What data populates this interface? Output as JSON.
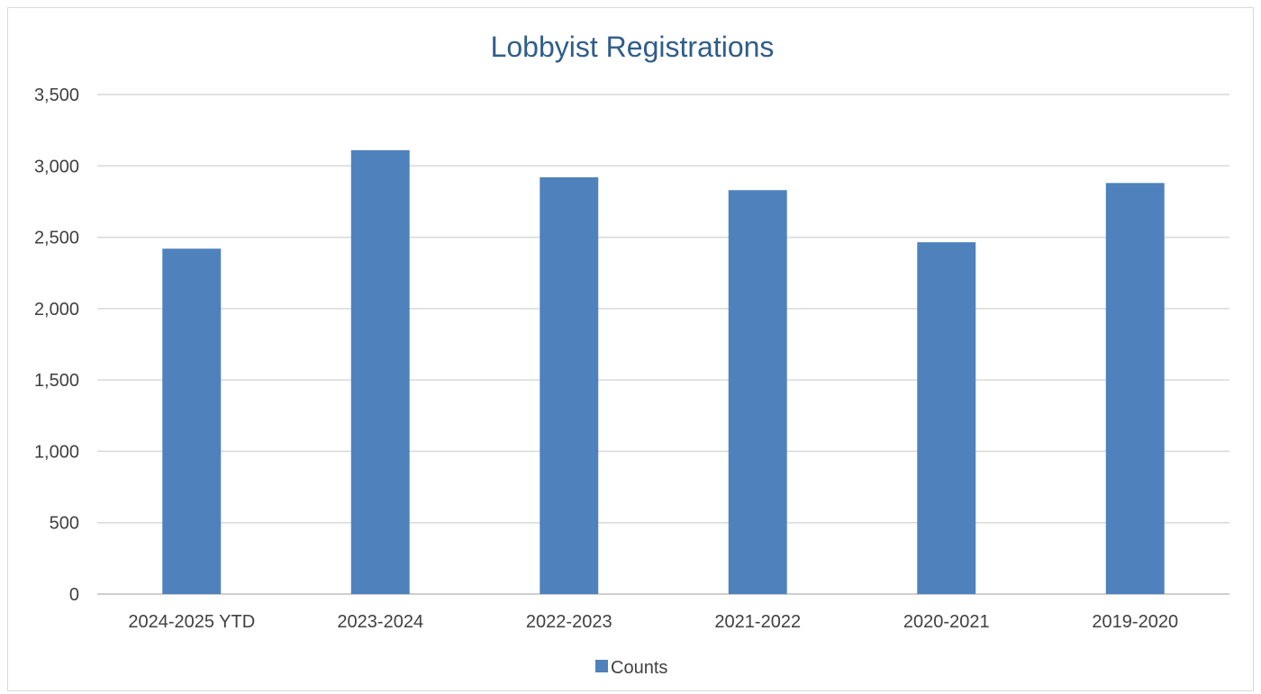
{
  "chart_data": {
    "type": "bar",
    "title": "Lobbyist Registrations",
    "xlabel": "",
    "ylabel": "",
    "categories": [
      "2024-2025 YTD",
      "2023-2024",
      "2022-2023",
      "2021-2022",
      "2020-2021",
      "2019-2020"
    ],
    "series": [
      {
        "name": "Counts",
        "values": [
          2420,
          3110,
          2920,
          2830,
          2465,
          2880
        ],
        "color": "#4f81bd"
      }
    ],
    "ylim": [
      0,
      3500
    ],
    "yticks": [
      0,
      500,
      1000,
      1500,
      2000,
      2500,
      3000,
      3500
    ],
    "ytick_labels": [
      "0",
      "500",
      "1,000",
      "1,500",
      "2,000",
      "2,500",
      "3,000",
      "3,500"
    ],
    "grid": true,
    "legend_position": "bottom",
    "gridline_color": "#d9d9d9",
    "axis_color": "#bfbfbf"
  }
}
